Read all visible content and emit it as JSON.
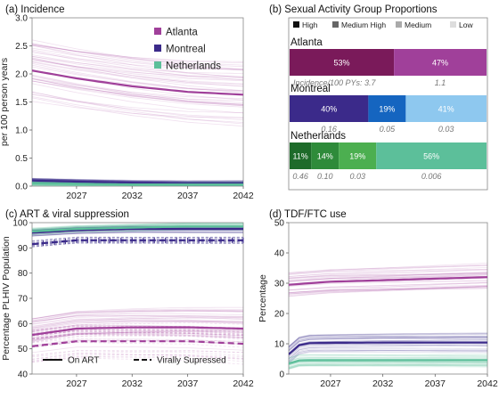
{
  "colors": {
    "atlanta": "#a0409a",
    "atlanta_dark": "#7a1a5a",
    "montreal": "#3b2a8a",
    "montreal_mid": "#1565c0",
    "montreal_light": "#8ec8ef",
    "netherlands": "#5cbf9a",
    "neth_dark": "#1e6b2a",
    "neth_mid": "#2e8b3a",
    "neth_light": "#4caf50",
    "legend_high": "#111111",
    "legend_medhigh": "#666666",
    "legend_medium": "#aaaaaa",
    "legend_low": "#dddddd"
  },
  "chart_data": [
    {
      "id": "a",
      "type": "line",
      "title": "(a) Incidence",
      "xlabel": "",
      "ylabel": "per 100 person years",
      "xlim": [
        2023,
        2042
      ],
      "ylim": [
        0,
        3
      ],
      "xticks": [
        2027,
        2032,
        2037,
        2042
      ],
      "yticks": [
        0.0,
        0.5,
        1.0,
        1.5,
        2.0,
        2.5,
        3.0
      ],
      "ytick_labels": [
        "0.0",
        "0.5",
        "1.0",
        "1.5",
        "2.0",
        "2.5",
        "3.0"
      ],
      "legend": {
        "placement": "top-right",
        "entries": [
          "Atlanta",
          "Montreal",
          "Netherlands"
        ]
      },
      "series": [
        {
          "name": "Atlanta",
          "x": [
            2023,
            2027,
            2032,
            2037,
            2042
          ],
          "values": [
            2.06,
            1.92,
            1.78,
            1.68,
            1.63
          ]
        },
        {
          "name": "Montreal",
          "x": [
            2023,
            2027,
            2032,
            2037,
            2042
          ],
          "values": [
            0.1,
            0.08,
            0.06,
            0.05,
            0.05
          ]
        },
        {
          "name": "Netherlands",
          "x": [
            2023,
            2027,
            2032,
            2037,
            2042
          ],
          "values": [
            0.05,
            0.04,
            0.03,
            0.03,
            0.03
          ]
        }
      ]
    },
    {
      "id": "b",
      "type": "bar",
      "title": "(b) Sexual Activity Group Proportions",
      "legend": {
        "placement": "top",
        "entries": [
          "High",
          "Medium High",
          "Medium",
          "Low"
        ]
      },
      "rows": [
        {
          "name": "Atlanta",
          "segments": [
            53,
            47
          ],
          "labels": [
            "53%",
            "47%"
          ],
          "incidence_text": [
            "Incidence/100 PYs: 3.7",
            "1.1"
          ]
        },
        {
          "name": "Montreal",
          "segments": [
            40,
            19,
            41
          ],
          "labels": [
            "40%",
            "19%",
            "41%"
          ],
          "incidence_text": [
            "0.16",
            "0.05",
            "0.03"
          ]
        },
        {
          "name": "Netherlands",
          "segments": [
            11,
            14,
            19,
            56
          ],
          "labels": [
            "11%",
            "14%",
            "19%",
            "56%"
          ],
          "incidence_text": [
            "0.46",
            "0.10",
            "0.03",
            "0.006"
          ]
        }
      ]
    },
    {
      "id": "c",
      "type": "line",
      "title": "(c) ART & viral suppression",
      "ylabel": "Percentage PLHIV Population",
      "xlim": [
        2023,
        2042
      ],
      "ylim": [
        40,
        100
      ],
      "xticks": [
        2027,
        2032,
        2037,
        2042
      ],
      "yticks": [
        40,
        50,
        60,
        70,
        80,
        90,
        100
      ],
      "legend": {
        "placement": "bottom",
        "entries": [
          "On ART",
          "Virally Supressed"
        ]
      },
      "series": [
        {
          "name": "Atlanta On ART",
          "style": "solid",
          "x": [
            2023,
            2027,
            2032,
            2037,
            2042
          ],
          "values": [
            55.5,
            58,
            58.5,
            58.5,
            58
          ]
        },
        {
          "name": "Atlanta Virally Supressed",
          "style": "dashed",
          "x": [
            2023,
            2027,
            2032,
            2037,
            2042
          ],
          "values": [
            51,
            53,
            53,
            53,
            52
          ]
        },
        {
          "name": "Montreal On ART",
          "style": "solid",
          "x": [
            2023,
            2027,
            2032,
            2037,
            2042
          ],
          "values": [
            96,
            97,
            97.5,
            97.5,
            97.5
          ]
        },
        {
          "name": "Montreal Virally Supressed",
          "style": "dashed",
          "x": [
            2023,
            2027,
            2032,
            2037,
            2042
          ],
          "values": [
            91.5,
            93,
            93,
            93,
            93
          ]
        },
        {
          "name": "Netherlands On ART",
          "style": "solid",
          "x": [
            2023,
            2027,
            2032,
            2037,
            2042
          ],
          "values": [
            96.5,
            97.5,
            98,
            98.5,
            98.5
          ]
        }
      ]
    },
    {
      "id": "d",
      "type": "line",
      "title": "(d) TDF/FTC use",
      "ylabel": "Percentage",
      "xlim": [
        2023,
        2042
      ],
      "ylim": [
        0,
        50
      ],
      "xticks": [
        2027,
        2032,
        2037,
        2042
      ],
      "yticks": [
        0,
        10,
        20,
        30,
        40,
        50
      ],
      "series": [
        {
          "name": "Atlanta",
          "x": [
            2023,
            2027,
            2032,
            2037,
            2042
          ],
          "values": [
            29.5,
            30.5,
            31,
            31.5,
            32
          ]
        },
        {
          "name": "Montreal",
          "x": [
            2023,
            2024,
            2025,
            2027,
            2032,
            2037,
            2042
          ],
          "values": [
            6.5,
            9.5,
            10.2,
            10.3,
            10.4,
            10.4,
            10.4
          ]
        },
        {
          "name": "Netherlands",
          "x": [
            2023,
            2024,
            2025,
            2027,
            2032,
            2037,
            2042
          ],
          "values": [
            3.5,
            4.5,
            4.6,
            4.6,
            4.6,
            4.6,
            4.6
          ]
        }
      ]
    }
  ]
}
